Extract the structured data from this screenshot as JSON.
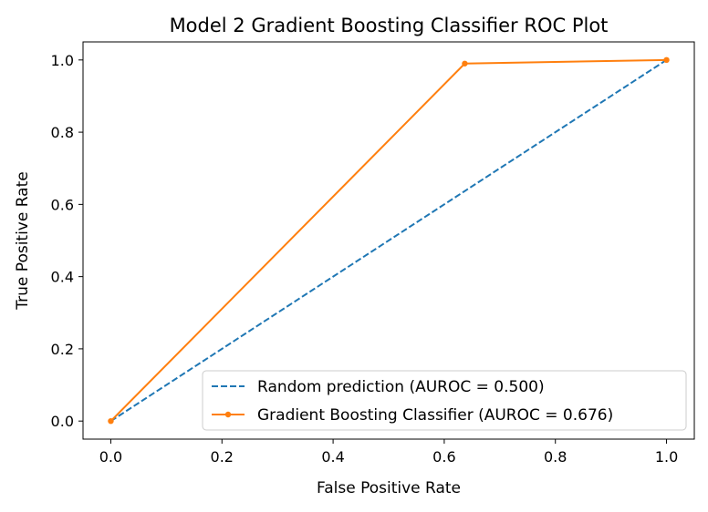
{
  "chart_data": {
    "type": "line",
    "title": "Model 2 Gradient Boosting Classifier ROC Plot",
    "xlabel": "False Positive Rate",
    "ylabel": "True Positive Rate",
    "xlim": [
      -0.05,
      1.05
    ],
    "ylim": [
      -0.05,
      1.05
    ],
    "xticks": [
      0.0,
      0.2,
      0.4,
      0.6,
      0.8,
      1.0
    ],
    "xtick_labels": [
      "0.0",
      "0.2",
      "0.4",
      "0.6",
      "0.8",
      "1.0"
    ],
    "yticks": [
      0.0,
      0.2,
      0.4,
      0.6,
      0.8,
      1.0
    ],
    "ytick_labels": [
      "0.0",
      "0.2",
      "0.4",
      "0.6",
      "0.8",
      "1.0"
    ],
    "grid": false,
    "legend_position": "lower-right",
    "series": [
      {
        "name": "Random prediction (AUROC = 0.500)",
        "style": "dashed",
        "color": "#1f77b4",
        "x": [
          0.0,
          1.0
        ],
        "y": [
          0.0,
          1.0
        ]
      },
      {
        "name": "Gradient Boosting Classifier (AUROC = 0.676)",
        "style": "solid-marker",
        "color": "#ff7f0e",
        "x": [
          0.0,
          0.637,
          1.0
        ],
        "y": [
          0.0,
          0.99,
          1.0
        ]
      }
    ]
  }
}
